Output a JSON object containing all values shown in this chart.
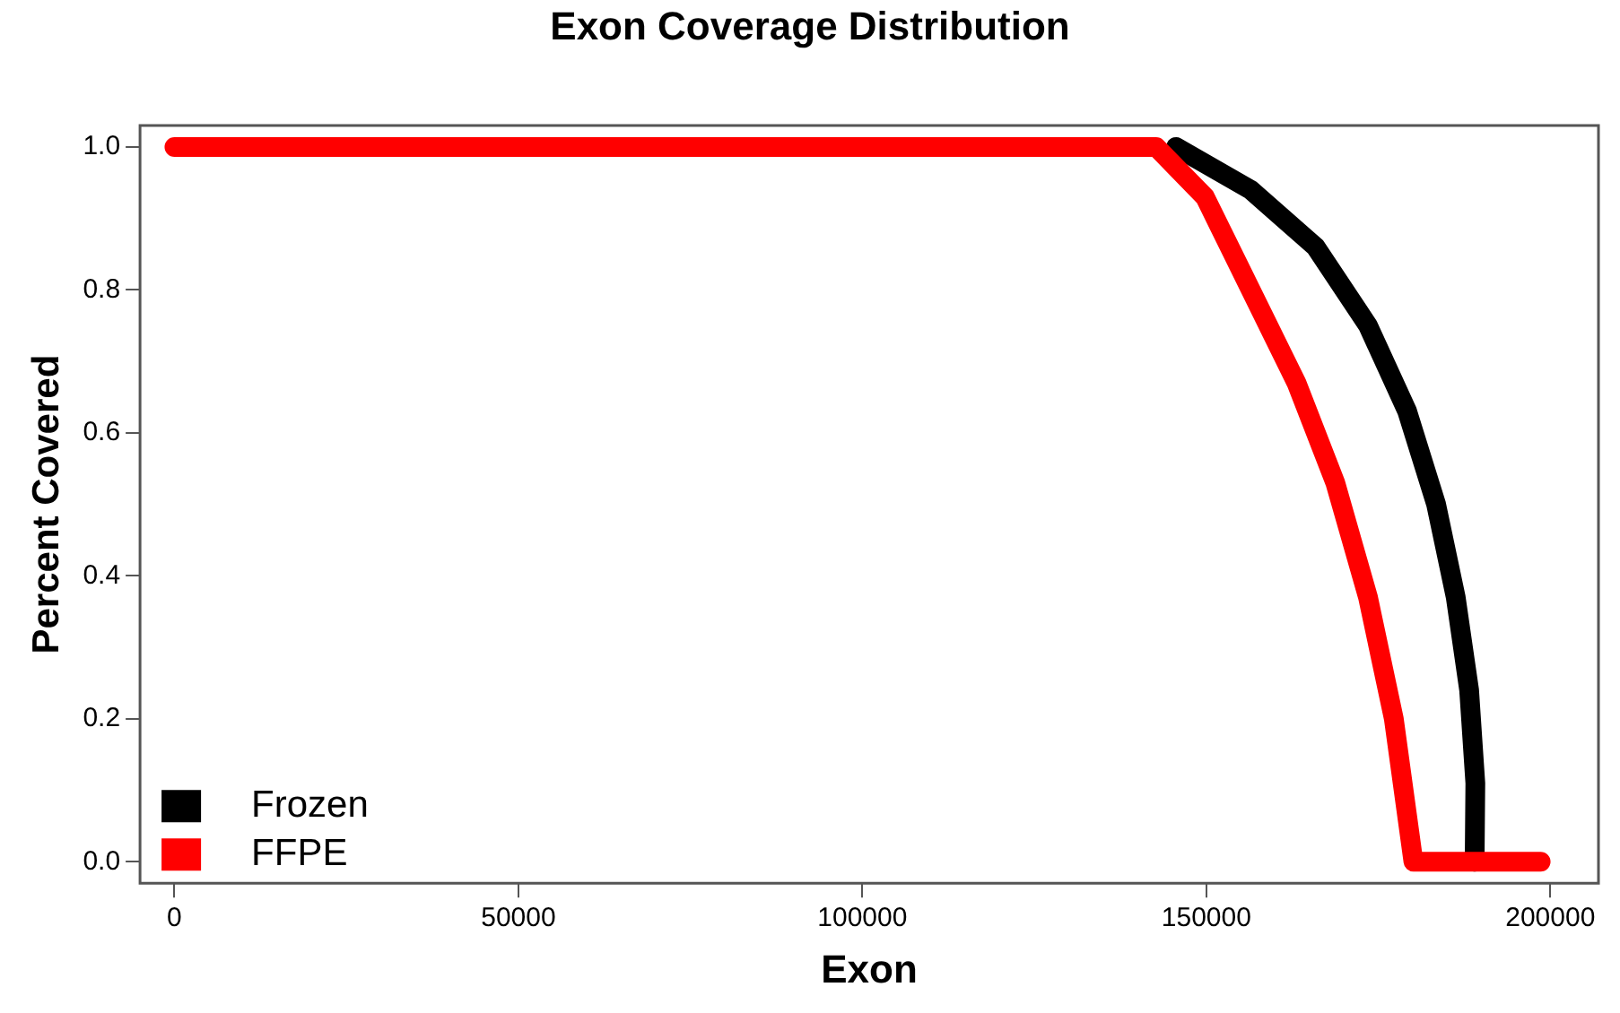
{
  "chart_data": {
    "type": "line",
    "title": "Exon Coverage Distribution",
    "xlabel": "Exon",
    "ylabel": "Percent Covered",
    "xlim": [
      -5000,
      207000
    ],
    "xticks": [
      0,
      50000,
      100000,
      150000,
      200000
    ],
    "ylim": [
      -0.03,
      1.03
    ],
    "yticks": [
      {
        "value": 0,
        "label": "0.0"
      },
      0.2,
      0.4,
      0.6,
      0.8,
      {
        "value": 1,
        "label": "1.0"
      }
    ],
    "grid": false,
    "legend": "bottom left",
    "marker": "none",
    "line_style": "solid",
    "series": [
      {
        "name": "Frozen",
        "color": "#000000",
        "x": [
          145600,
          156450,
          165900,
          173500,
          179200,
          183400,
          186250,
          188200,
          189100,
          189000
        ],
        "values": [
          1,
          0.94,
          0.86,
          0.75,
          0.63,
          0.5,
          0.37,
          0.24,
          0.11,
          0
        ]
      },
      {
        "name": "FFPE",
        "color": "#ff0000",
        "x": [
          0,
          142700,
          149800,
          156450,
          163100,
          168750,
          173500,
          177250,
          180100,
          198600
        ],
        "values": [
          1,
          1,
          0.93,
          0.8,
          0.67,
          0.53,
          0.37,
          0.2,
          0,
          0
        ]
      }
    ]
  }
}
